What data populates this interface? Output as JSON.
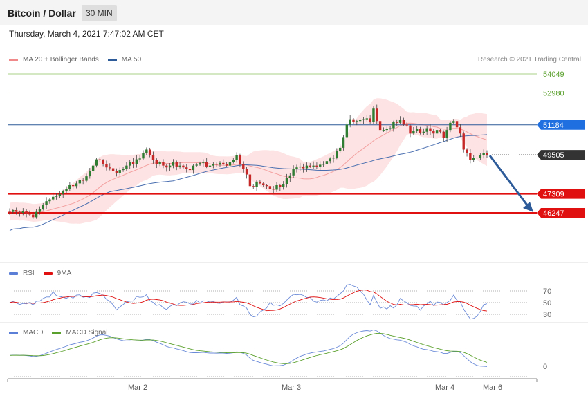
{
  "header": {
    "title": "Bitcoin / Dollar",
    "timeframe": "30 MIN"
  },
  "date": "Thursday, March 4, 2021 7:47:02 AM CET",
  "copyright": "Research © 2021 Trading Central",
  "legends": {
    "price": [
      {
        "label": "MA 20 + Bollinger Bands",
        "color": "#f08a8a"
      },
      {
        "label": "MA 50",
        "color": "#2d5a99"
      }
    ],
    "rsi": [
      {
        "label": "RSI",
        "color": "#5b7fd6"
      },
      {
        "label": "9MA",
        "color": "#e01010"
      }
    ],
    "macd": [
      {
        "label": "MACD",
        "color": "#5b7fd6"
      },
      {
        "label": "MACD Signal",
        "color": "#5aa02c"
      }
    ]
  },
  "chart_data": [
    {
      "type": "candlestick",
      "title": "Bitcoin / Dollar",
      "ylim": [
        44000,
        56000
      ],
      "x_ticks": [
        "Mar 2",
        "Mar 3",
        "Mar 4",
        "Mar 6"
      ],
      "price_levels": [
        {
          "value": 54049,
          "label": "54049",
          "kind": "target",
          "color": "#5aa02c"
        },
        {
          "value": 52980,
          "label": "52980",
          "kind": "target",
          "color": "#5aa02c"
        },
        {
          "value": 51184,
          "label": "51184",
          "kind": "pivot",
          "color": "#1f5fbf"
        },
        {
          "value": 49505,
          "label": "49505",
          "kind": "last",
          "color": "#333333"
        },
        {
          "value": 47309,
          "label": "47309",
          "kind": "support",
          "color": "#e01010"
        },
        {
          "value": 46247,
          "label": "46247",
          "kind": "support",
          "color": "#e01010"
        }
      ],
      "close": [
        46300,
        46400,
        46300,
        46250,
        46350,
        46200,
        46150,
        46000,
        46300,
        46450,
        46700,
        46900,
        47000,
        47150,
        47200,
        47300,
        47450,
        47600,
        47800,
        47750,
        47900,
        48100,
        48050,
        48300,
        48600,
        48900,
        49250,
        49200,
        49000,
        48800,
        48750,
        48600,
        48500,
        48650,
        48700,
        48900,
        49100,
        49000,
        49250,
        49300,
        49600,
        49800,
        49500,
        49200,
        49000,
        49100,
        48900,
        48800,
        48900,
        49100,
        48850,
        48900,
        48800,
        48700,
        48650,
        48900,
        48950,
        49050,
        49100,
        48850,
        48900,
        49000,
        48950,
        49050,
        49000,
        48900,
        49100,
        49200,
        49500,
        49000,
        48700,
        48400,
        47750,
        47700,
        48000,
        47900,
        47800,
        47750,
        47600,
        47550,
        47800,
        47700,
        47850,
        48200,
        48350,
        48700,
        48800,
        48850,
        48750,
        48900,
        48850,
        48900,
        48850,
        48950,
        49000,
        49150,
        49300,
        49350,
        49700,
        49900,
        50500,
        51200,
        51500,
        51350,
        51400,
        51450,
        51500,
        51550,
        51350,
        52100,
        51400,
        50900,
        50900,
        50950,
        51000,
        51350,
        51300,
        51450,
        51200,
        51150,
        50700,
        50850,
        50950,
        50750,
        50800,
        51000,
        50850,
        50700,
        50900,
        50800,
        50450,
        50900,
        51300,
        51400,
        51050,
        50700,
        49800,
        49600,
        49200,
        49350,
        49350,
        49500,
        49600,
        49505
      ],
      "ma20_bands": {
        "mid_start": 46000,
        "mid_end": 50300,
        "upper_peak": 52800,
        "lower_trough": 44700
      },
      "ma50": {
        "start": 44800,
        "end": 50900
      }
    },
    {
      "type": "line",
      "title": "RSI",
      "y_ticks": [
        70,
        50,
        30
      ],
      "series": [
        {
          "name": "RSI"
        },
        {
          "name": "9MA"
        }
      ]
    },
    {
      "type": "line",
      "title": "MACD",
      "y_ticks": [
        0
      ],
      "series": [
        {
          "name": "MACD"
        },
        {
          "name": "MACD Signal"
        }
      ]
    }
  ]
}
